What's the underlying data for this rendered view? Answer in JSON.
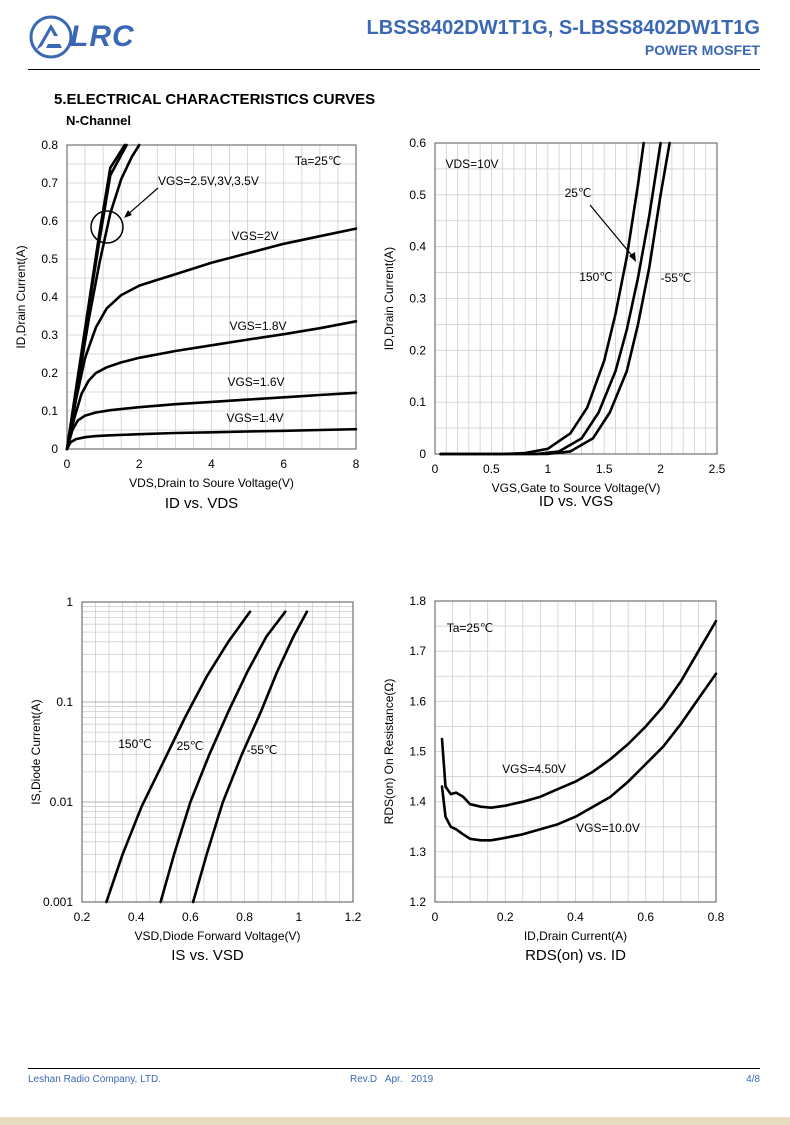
{
  "header": {
    "logo_text": "LRC",
    "title": "LBSS8402DW1T1G, S-LBSS8402DW1T1G",
    "subtitle": "POWER MOSFET",
    "brand_color": "#3b68b4"
  },
  "section_title": "5.ELECTRICAL CHARACTERISTICS CURVES",
  "subsection_title": "N-Channel",
  "footer": {
    "company": "Leshan Radio Company, LTD.",
    "revision": "Rev.D   Apr.   2019",
    "page": "4/8"
  },
  "chart_data": [
    {
      "type": "line",
      "caption": "ID vs. VDS",
      "xlabel": "VDS,Drain to Soure Voltage(V)",
      "ylabel": "ID,Drain Current(A)",
      "xlim": [
        0,
        8
      ],
      "ylim": [
        0,
        0.8
      ],
      "xticks": [
        0,
        2,
        4,
        6,
        8
      ],
      "yticks": [
        0,
        0.1,
        0.2,
        0.3,
        0.4,
        0.5,
        0.6,
        0.7,
        0.8
      ],
      "ytick_labels": [
        "0",
        "0.1",
        "0.2",
        "0.3",
        "0.4",
        "0.5",
        "0.6",
        "0.7",
        "0.8"
      ],
      "grid": true,
      "annotations": [
        "Ta=25℃",
        "VGS=2.5V,3V,3.5V"
      ],
      "series": [
        {
          "name": "VGS=3.5V",
          "x": [
            0,
            0.3,
            0.6,
            0.9,
            1.2,
            1.6
          ],
          "y": [
            0,
            0.19,
            0.38,
            0.57,
            0.74,
            0.8
          ]
        },
        {
          "name": "VGS=3V",
          "x": [
            0,
            0.3,
            0.6,
            0.9,
            1.2,
            1.65
          ],
          "y": [
            0,
            0.185,
            0.37,
            0.55,
            0.72,
            0.8
          ]
        },
        {
          "name": "VGS=2.5V",
          "x": [
            0,
            0.3,
            0.6,
            0.9,
            1.2,
            1.5,
            1.8,
            2.0
          ],
          "y": [
            0,
            0.17,
            0.34,
            0.49,
            0.62,
            0.71,
            0.77,
            0.8
          ]
        },
        {
          "name": "VGS=2V",
          "x": [
            0,
            0.25,
            0.5,
            0.8,
            1.1,
            1.5,
            2,
            2.5,
            3,
            4,
            5,
            6,
            7,
            8
          ],
          "y": [
            0,
            0.13,
            0.24,
            0.32,
            0.37,
            0.405,
            0.43,
            0.445,
            0.46,
            0.49,
            0.515,
            0.54,
            0.56,
            0.58
          ]
        },
        {
          "name": "VGS=1.8V",
          "x": [
            0,
            0.2,
            0.4,
            0.6,
            0.8,
            1.1,
            1.5,
            2,
            3,
            4,
            5,
            6,
            7,
            8
          ],
          "y": [
            0,
            0.08,
            0.145,
            0.18,
            0.2,
            0.215,
            0.228,
            0.24,
            0.258,
            0.273,
            0.288,
            0.302,
            0.318,
            0.336
          ]
        },
        {
          "name": "VGS=1.6V",
          "x": [
            0,
            0.15,
            0.3,
            0.5,
            0.8,
            1.2,
            2,
            3,
            4,
            5,
            6,
            7,
            8
          ],
          "y": [
            0,
            0.05,
            0.075,
            0.088,
            0.096,
            0.102,
            0.11,
            0.118,
            0.124,
            0.13,
            0.136,
            0.142,
            0.148
          ]
        },
        {
          "name": "VGS=1.4V",
          "x": [
            0,
            0.1,
            0.25,
            0.5,
            0.8,
            1.2,
            2,
            3,
            4,
            5,
            6,
            7,
            8
          ],
          "y": [
            0,
            0.018,
            0.026,
            0.031,
            0.034,
            0.036,
            0.039,
            0.042,
            0.044,
            0.046,
            0.048,
            0.05,
            0.052
          ]
        }
      ],
      "labels": [
        "VGS=2V",
        "VGS=1.8V",
        "VGS=1.6V",
        "VGS=1.4V"
      ]
    },
    {
      "type": "line",
      "caption": "ID vs. VGS",
      "xlabel": "VGS,Gate to Source Voltage(V)",
      "ylabel": "ID,Drain Current(A)",
      "xlim": [
        0,
        2.5
      ],
      "ylim": [
        0,
        0.6
      ],
      "xticks": [
        0,
        0.5,
        1,
        1.5,
        2,
        2.5
      ],
      "xtick_labels": [
        "0",
        "0.5",
        "1",
        "1.5",
        "2",
        "2.5"
      ],
      "yticks": [
        0,
        0.1,
        0.2,
        0.3,
        0.4,
        0.5,
        0.6
      ],
      "ytick_labels": [
        "0",
        "0.1",
        "0.2",
        "0.3",
        "0.4",
        "0.5",
        "0.6"
      ],
      "grid": true,
      "annotations": [
        "VDS=10V"
      ],
      "series": [
        {
          "name": "150℃",
          "x": [
            0.05,
            0.6,
            0.8,
            1.0,
            1.2,
            1.35,
            1.5,
            1.6,
            1.7,
            1.8,
            1.85
          ],
          "y": [
            0,
            0,
            0.002,
            0.01,
            0.04,
            0.09,
            0.18,
            0.27,
            0.38,
            0.52,
            0.6
          ]
        },
        {
          "name": "25℃",
          "x": [
            0.05,
            0.9,
            1.1,
            1.3,
            1.45,
            1.6,
            1.7,
            1.8,
            1.9,
            2.0
          ],
          "y": [
            0,
            0,
            0.005,
            0.03,
            0.08,
            0.16,
            0.24,
            0.34,
            0.46,
            0.6
          ]
        },
        {
          "name": "-55℃",
          "x": [
            0.05,
            1.0,
            1.2,
            1.4,
            1.55,
            1.7,
            1.8,
            1.9,
            2.0,
            2.08
          ],
          "y": [
            0,
            0,
            0.005,
            0.03,
            0.08,
            0.16,
            0.25,
            0.36,
            0.5,
            0.6
          ]
        }
      ],
      "labels": [
        "150℃",
        "25℃",
        "-55℃"
      ]
    },
    {
      "type": "line",
      "caption": "IS vs. VSD",
      "xlabel": "VSD,Diode Forward Voltage(V)",
      "ylabel": "IS,Diode Current(A)",
      "xlim": [
        0.2,
        1.2
      ],
      "ylim": [
        0.001,
        1
      ],
      "yscale": "log",
      "xticks": [
        0.2,
        0.4,
        0.6,
        0.8,
        1,
        1.2
      ],
      "xtick_labels": [
        "0.2",
        "0.4",
        "0.6",
        "0.8",
        "1",
        "1.2"
      ],
      "yticks": [
        0.001,
        0.01,
        0.1,
        1
      ],
      "ytick_labels": [
        "0.001",
        "0.01",
        "0.1",
        "1"
      ],
      "grid": true,
      "series": [
        {
          "name": "150℃",
          "x": [
            0.29,
            0.35,
            0.42,
            0.5,
            0.58,
            0.66,
            0.74,
            0.82
          ],
          "y": [
            0.001,
            0.003,
            0.009,
            0.025,
            0.07,
            0.18,
            0.4,
            0.8
          ]
        },
        {
          "name": "25℃",
          "x": [
            0.49,
            0.54,
            0.6,
            0.67,
            0.74,
            0.81,
            0.88,
            0.95
          ],
          "y": [
            0.001,
            0.003,
            0.01,
            0.03,
            0.08,
            0.2,
            0.45,
            0.8
          ]
        },
        {
          "name": "-55℃",
          "x": [
            0.61,
            0.66,
            0.72,
            0.79,
            0.86,
            0.92,
            0.98,
            1.03
          ],
          "y": [
            0.001,
            0.003,
            0.01,
            0.03,
            0.08,
            0.2,
            0.45,
            0.8
          ]
        }
      ],
      "labels": [
        "150℃",
        "25℃",
        "-55℃"
      ]
    },
    {
      "type": "line",
      "caption": "RDS(on) vs. ID",
      "xlabel": "ID,Drain Current(A)",
      "ylabel": "RDS(on) On Resistance(Ω)",
      "xlim": [
        0,
        0.8
      ],
      "ylim": [
        1.2,
        1.8
      ],
      "xticks": [
        0,
        0.2,
        0.4,
        0.6,
        0.8
      ],
      "xtick_labels": [
        "0",
        "0.2",
        "0.4",
        "0.6",
        "0.8"
      ],
      "yticks": [
        1.2,
        1.3,
        1.4,
        1.5,
        1.6,
        1.7,
        1.8
      ],
      "ytick_labels": [
        "1.2",
        "1.3",
        "1.4",
        "1.5",
        "1.6",
        "1.7",
        "1.8"
      ],
      "grid": true,
      "annotations": [
        "Ta=25℃"
      ],
      "series": [
        {
          "name": "VGS=4.50V",
          "x": [
            0.02,
            0.03,
            0.045,
            0.06,
            0.08,
            0.1,
            0.13,
            0.16,
            0.2,
            0.25,
            0.3,
            0.35,
            0.4,
            0.45,
            0.5,
            0.55,
            0.6,
            0.65,
            0.7,
            0.75,
            0.8
          ],
          "y": [
            1.525,
            1.43,
            1.415,
            1.418,
            1.41,
            1.395,
            1.39,
            1.388,
            1.392,
            1.4,
            1.41,
            1.425,
            1.44,
            1.46,
            1.485,
            1.515,
            1.55,
            1.59,
            1.64,
            1.7,
            1.76
          ]
        },
        {
          "name": "VGS=10.0V",
          "x": [
            0.02,
            0.03,
            0.045,
            0.06,
            0.08,
            0.1,
            0.13,
            0.16,
            0.2,
            0.25,
            0.3,
            0.35,
            0.4,
            0.45,
            0.5,
            0.55,
            0.6,
            0.65,
            0.7,
            0.75,
            0.8
          ],
          "y": [
            1.43,
            1.37,
            1.35,
            1.345,
            1.335,
            1.326,
            1.323,
            1.323,
            1.328,
            1.335,
            1.345,
            1.355,
            1.37,
            1.39,
            1.41,
            1.44,
            1.475,
            1.51,
            1.555,
            1.605,
            1.655
          ]
        }
      ],
      "labels": [
        "VGS=4.50V",
        "VGS=10.0V"
      ]
    }
  ]
}
